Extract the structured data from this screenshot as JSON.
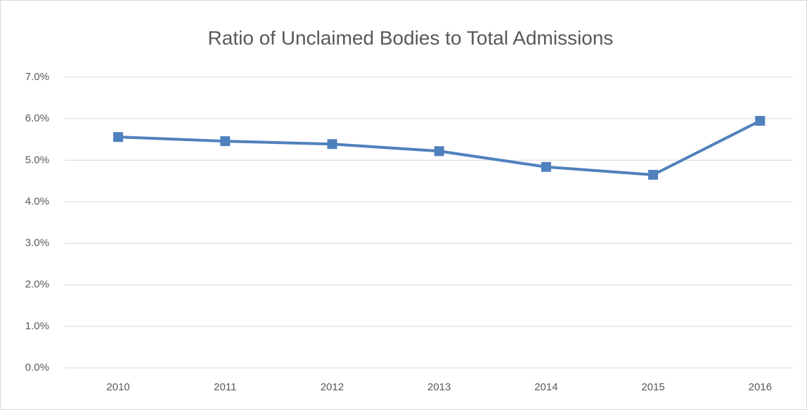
{
  "chart_data": {
    "type": "line",
    "title": "Ratio of Unclaimed Bodies to Total Admissions",
    "categories": [
      "2010",
      "2011",
      "2012",
      "2013",
      "2014",
      "2015",
      "2016"
    ],
    "series": [
      {
        "name": "Ratio",
        "color": "#4f81bd",
        "values": [
          5.56,
          5.46,
          5.39,
          5.22,
          4.84,
          4.65,
          5.95
        ]
      }
    ],
    "ylim": [
      0,
      7
    ],
    "yticks": [
      {
        "value": 0,
        "label": "0.0%"
      },
      {
        "value": 1,
        "label": "1.0%"
      },
      {
        "value": 2,
        "label": "2.0%"
      },
      {
        "value": 3,
        "label": "3.0%"
      },
      {
        "value": 4,
        "label": "4.0%"
      },
      {
        "value": 5,
        "label": "5.0%"
      },
      {
        "value": 6,
        "label": "6.0%"
      },
      {
        "value": 7,
        "label": "7.0%"
      }
    ],
    "grid": true
  }
}
